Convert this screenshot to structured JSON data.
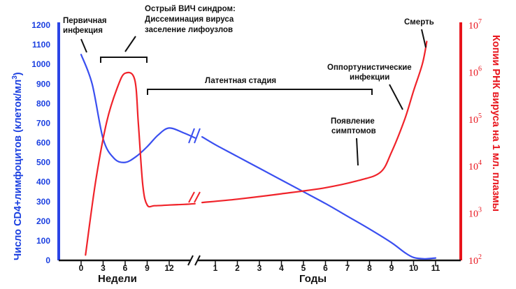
{
  "chart_data": {
    "type": "line",
    "left_axis": {
      "label_main": "Число CD4+лимфоцитов (клеток/мл",
      "label_sup": "3",
      "label_close": ")",
      "ticks": [
        "0",
        "100",
        "200",
        "300",
        "400",
        "500",
        "600",
        "700",
        "800",
        "900",
        "1000",
        "1100",
        "1200"
      ],
      "ylim": [
        0,
        1200
      ],
      "color": "#1a3fe0"
    },
    "right_axis": {
      "label": "Копии РНК вируса на 1 мл. плазмы",
      "scale": "log",
      "ticks": [
        {
          "base": "10",
          "exp": "2"
        },
        {
          "base": "10",
          "exp": "3"
        },
        {
          "base": "10",
          "exp": "4"
        },
        {
          "base": "10",
          "exp": "5"
        },
        {
          "base": "10",
          "exp": "6"
        },
        {
          "base": "10",
          "exp": "7"
        }
      ],
      "ylim": [
        100,
        10000000
      ],
      "color": "#e8141c"
    },
    "x_axis": {
      "weeks_label": "Недели",
      "years_label": "Годы",
      "week_ticks": [
        "0",
        "3",
        "6",
        "9",
        "12"
      ],
      "year_ticks": [
        "1",
        "2",
        "3",
        "4",
        "5",
        "6",
        "7",
        "8",
        "9",
        "10",
        "11"
      ]
    },
    "series": [
      {
        "color": "#3a4ff0",
        "axis": "left",
        "segments": [
          [
            {
              "p": "w0",
              "y": 1050
            },
            {
              "p": "w1.5",
              "y": 900
            },
            {
              "p": "w3",
              "y": 620
            },
            {
              "p": "w4.5",
              "y": 520
            },
            {
              "p": "w6",
              "y": 500
            },
            {
              "p": "w7.5",
              "y": 530
            },
            {
              "p": "w9",
              "y": 580
            },
            {
              "p": "w10.5",
              "y": 640
            },
            {
              "p": "w12",
              "y": 675
            },
            {
              "p": "w14",
              "y": 650
            },
            {
              "p": "w15.5",
              "y": 625
            }
          ],
          [
            {
              "p": "y0.4",
              "y": 630
            },
            {
              "p": "y1",
              "y": 590
            },
            {
              "p": "y2",
              "y": 530
            },
            {
              "p": "y3",
              "y": 470
            },
            {
              "p": "y4",
              "y": 410
            },
            {
              "p": "y5",
              "y": 350
            },
            {
              "p": "y6",
              "y": 290
            },
            {
              "p": "y7",
              "y": 225
            },
            {
              "p": "y8",
              "y": 160
            },
            {
              "p": "y9",
              "y": 90
            },
            {
              "p": "y9.6",
              "y": 40
            },
            {
              "p": "y10",
              "y": 15
            },
            {
              "p": "y10.5",
              "y": 8
            },
            {
              "p": "y11",
              "y": 12
            }
          ]
        ]
      },
      {
        "color": "#f0232a",
        "axis": "right",
        "segments": [
          [
            {
              "p": "w0.6",
              "y": 130
            },
            {
              "p": "w2",
              "y": 5000
            },
            {
              "p": "w3.5",
              "y": 90000
            },
            {
              "p": "w5",
              "y": 500000
            },
            {
              "p": "w6",
              "y": 950000
            },
            {
              "p": "w7.3",
              "y": 700000
            },
            {
              "p": "w7.8",
              "y": 80000
            },
            {
              "p": "w8.4",
              "y": 4000
            },
            {
              "p": "w9",
              "y": 1500
            },
            {
              "p": "w10",
              "y": 1450
            },
            {
              "p": "w12",
              "y": 1500
            },
            {
              "p": "w14",
              "y": 1550
            },
            {
              "p": "w15.5",
              "y": 1600
            }
          ],
          [
            {
              "p": "y0.4",
              "y": 1700
            },
            {
              "p": "y2",
              "y": 2000
            },
            {
              "p": "y4",
              "y": 2600
            },
            {
              "p": "y6",
              "y": 3500
            },
            {
              "p": "y7.5",
              "y": 5000
            },
            {
              "p": "y8.5",
              "y": 7500
            },
            {
              "p": "y9",
              "y": 20000
            },
            {
              "p": "y9.6",
              "y": 100000
            },
            {
              "p": "y10",
              "y": 400000
            },
            {
              "p": "y10.4",
              "y": 1500000
            },
            {
              "p": "y10.6",
              "y": 4500000
            }
          ]
        ]
      }
    ],
    "annotations": [
      {
        "lines": [
          "Первичная",
          "инфекция"
        ]
      },
      {
        "lines": [
          "Острый ВИЧ синдром:",
          "Диссеминация вируса",
          "заселение лифоузлов"
        ]
      },
      {
        "lines": [
          "Латентная стадия"
        ]
      },
      {
        "lines": [
          "Оппортунистические",
          "инфекции"
        ]
      },
      {
        "lines": [
          "Появление",
          "симптомов"
        ]
      },
      {
        "lines": [
          "Смерть"
        ]
      }
    ]
  }
}
